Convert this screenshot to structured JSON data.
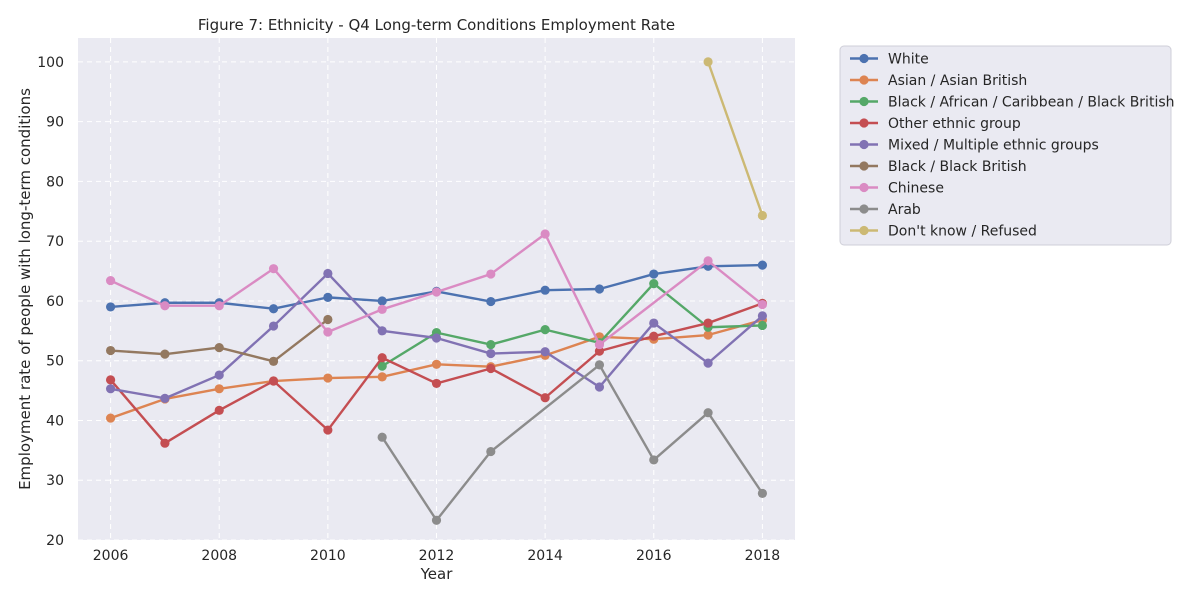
{
  "chart_data": {
    "type": "line",
    "title": "Figure 7: Ethnicity - Q4 Long-term Conditions Employment Rate",
    "xlabel": "Year",
    "ylabel": "Employment rate of people with long-term conditions",
    "xlim": [
      2005.4,
      2018.6
    ],
    "ylim": [
      20,
      104
    ],
    "xticks": [
      2006,
      2008,
      2010,
      2012,
      2014,
      2016,
      2018
    ],
    "yticks": [
      20,
      30,
      40,
      50,
      60,
      70,
      80,
      90,
      100
    ],
    "grid": true,
    "legend_position": "outside right, top",
    "x": [
      2006,
      2007,
      2008,
      2009,
      2010,
      2011,
      2012,
      2013,
      2014,
      2015,
      2016,
      2017,
      2018
    ],
    "series": [
      {
        "name": "White",
        "color": "#4c72b0",
        "values": [
          59.0,
          59.7,
          59.7,
          58.7,
          60.6,
          60.0,
          61.6,
          59.9,
          61.8,
          62.0,
          64.5,
          65.8,
          66.0
        ]
      },
      {
        "name": "Asian / Asian British",
        "color": "#dd8452",
        "values": [
          40.4,
          43.6,
          45.3,
          46.6,
          47.1,
          47.3,
          49.4,
          49.0,
          50.9,
          54.0,
          53.6,
          54.3,
          56.8
        ]
      },
      {
        "name": "Black / African / Caribbean / Black British",
        "color": "#55a868",
        "values": [
          null,
          null,
          null,
          null,
          null,
          49.1,
          54.7,
          52.7,
          55.2,
          53.0,
          62.9,
          55.6,
          55.9
        ]
      },
      {
        "name": "Other ethnic group",
        "color": "#c44e52",
        "values": [
          46.8,
          36.2,
          41.7,
          46.6,
          38.4,
          50.5,
          46.2,
          48.7,
          43.8,
          51.6,
          54.1,
          56.3,
          59.6
        ]
      },
      {
        "name": "Mixed / Multiple ethnic groups",
        "color": "#8172b3",
        "values": [
          45.3,
          43.7,
          47.6,
          55.8,
          64.6,
          55.0,
          53.8,
          51.2,
          51.5,
          45.6,
          56.3,
          49.6,
          57.5
        ]
      },
      {
        "name": "Black / Black British",
        "color": "#937860",
        "values": [
          51.7,
          51.1,
          52.2,
          49.9,
          56.9,
          null,
          null,
          null,
          null,
          null,
          null,
          null,
          null
        ]
      },
      {
        "name": "Chinese",
        "color": "#da8bc3",
        "values": [
          63.4,
          59.2,
          59.2,
          65.4,
          54.8,
          58.6,
          61.5,
          64.5,
          71.2,
          52.7,
          null,
          66.7,
          59.4
        ]
      },
      {
        "name": "Arab",
        "color": "#8c8c8c",
        "values": [
          null,
          null,
          null,
          null,
          null,
          37.2,
          23.3,
          34.8,
          null,
          49.3,
          33.4,
          41.3,
          27.8
        ]
      },
      {
        "name": "Don't know / Refused",
        "color": "#ccb974",
        "values": [
          null,
          null,
          null,
          null,
          null,
          null,
          null,
          null,
          null,
          null,
          null,
          100.0,
          74.3
        ]
      }
    ]
  }
}
